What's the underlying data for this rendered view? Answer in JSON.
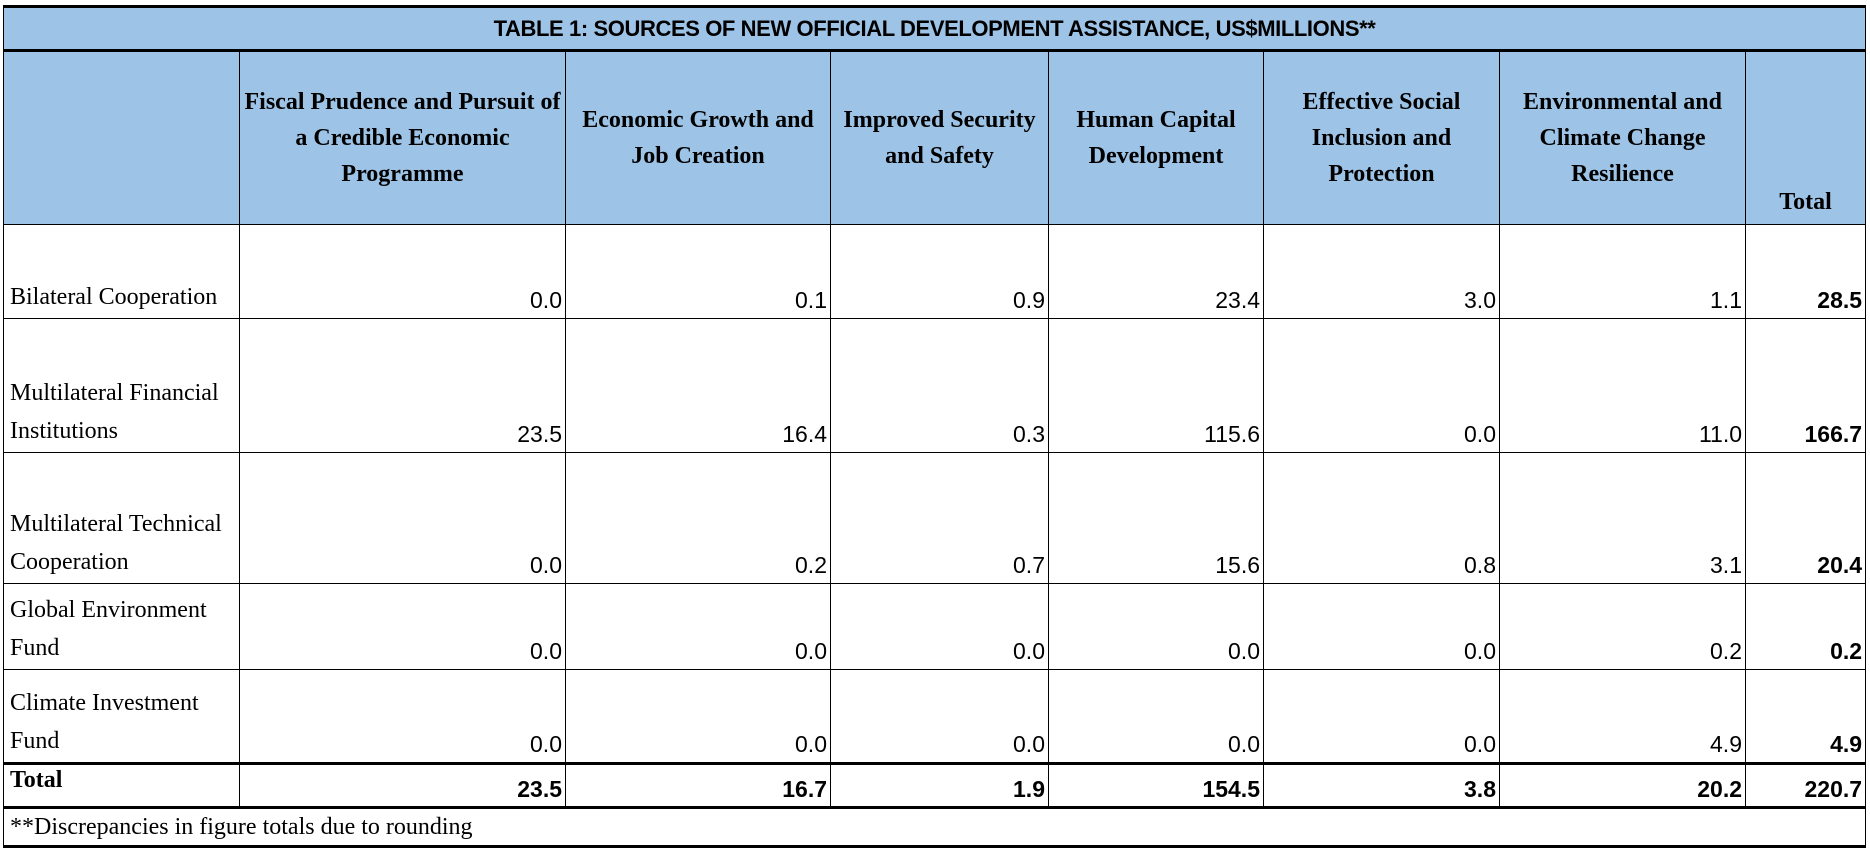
{
  "table": {
    "title": "TABLE 1: SOURCES OF NEW OFFICIAL DEVELOPMENT ASSISTANCE, US$MILLIONS**",
    "columns": [
      "Fiscal Prudence and Pursuit of a Credible Economic Programme",
      "Economic Growth and Job Creation",
      "Improved Security and Safety",
      "Human Capital Development",
      "Effective Social Inclusion and Protection",
      "Environmental and Climate Change Resilience",
      "Total"
    ],
    "rows": [
      {
        "label": "Bilateral Cooperation",
        "values": [
          "0.0",
          "0.1",
          "0.9",
          "23.4",
          "3.0",
          "1.1",
          "28.5"
        ]
      },
      {
        "label": "Multilateral Financial Institutions",
        "values": [
          "23.5",
          "16.4",
          "0.3",
          "115.6",
          "0.0",
          "11.0",
          "166.7"
        ]
      },
      {
        "label": "Multilateral Technical Cooperation",
        "values": [
          "0.0",
          "0.2",
          "0.7",
          "15.6",
          "0.8",
          "3.1",
          "20.4"
        ]
      },
      {
        "label": "Global Environment Fund",
        "values": [
          "0.0",
          "0.0",
          "0.0",
          "0.0",
          "0.0",
          "0.2",
          "0.2"
        ]
      },
      {
        "label": "Climate Investment Fund",
        "values": [
          "0.0",
          "0.0",
          "0.0",
          "0.0",
          "0.0",
          "4.9",
          "4.9"
        ]
      }
    ],
    "total_row": {
      "label": "Total",
      "values": [
        "23.5",
        "16.7",
        "1.9",
        "154.5",
        "3.8",
        "20.2",
        "220.7"
      ]
    },
    "footnote": "**Discrepancies in figure totals due to rounding"
  },
  "colors": {
    "header_background": "#9dc3e6",
    "border": "#000000"
  }
}
